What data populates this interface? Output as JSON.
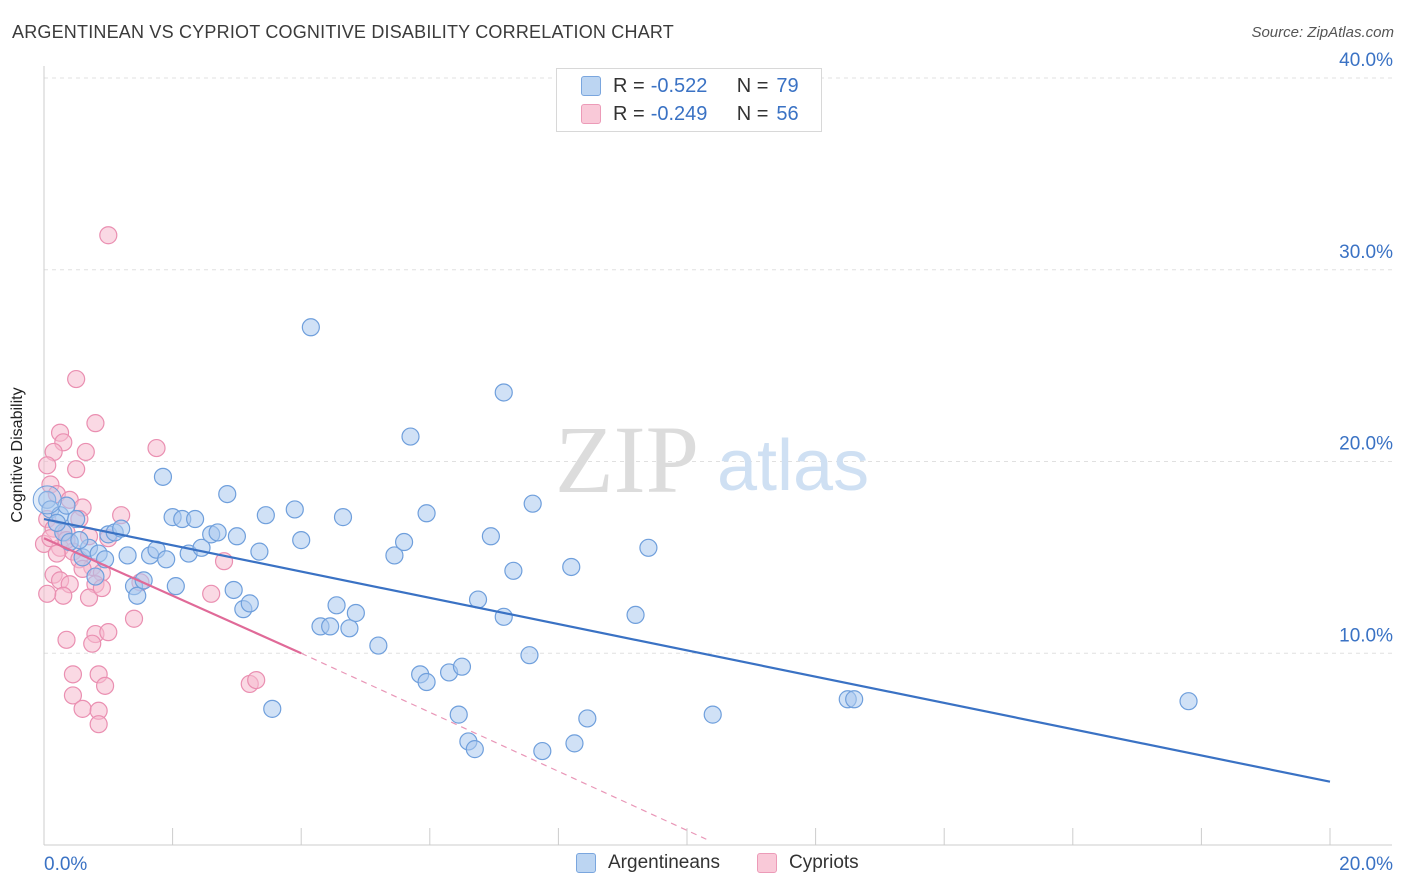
{
  "header": {
    "title": "ARGENTINEAN VS CYPRIOT COGNITIVE DISABILITY CORRELATION CHART",
    "source": "Source: ZipAtlas.com"
  },
  "watermark": {
    "zip": "ZIP",
    "atlas": "atlas"
  },
  "legend": {
    "rows": [
      {
        "r_label": "R =",
        "r_value": "-0.522",
        "n_label": "N =",
        "n_value": "79"
      },
      {
        "r_label": "R =",
        "r_value": "-0.249",
        "n_label": "N =",
        "n_value": "56"
      }
    ]
  },
  "bottom_legend": {
    "items": [
      {
        "label": "Argentineans"
      },
      {
        "label": "Cypriots"
      }
    ]
  },
  "colors": {
    "blue": "#3a72c4",
    "blue_fill": "#a9c8ef",
    "blue_stroke": "#6f9fdc",
    "pink": "#e06a98",
    "pink_fill": "#f6b9cd",
    "pink_stroke": "#ea8fb1",
    "grid": "#e0e0e0",
    "axis_text": "#3a72c4"
  },
  "chart_data": {
    "type": "scatter",
    "title": "ARGENTINEAN VS CYPRIOT COGNITIVE DISABILITY CORRELATION CHART",
    "xlabel": "",
    "ylabel": "Cognitive Disability",
    "xlim": [
      0,
      20
    ],
    "ylim": [
      0,
      40.0
    ],
    "x_ticks": [
      "0.0%",
      "20.0%"
    ],
    "y_ticks": [
      {
        "value": 10,
        "label": "10.0%"
      },
      {
        "value": 20,
        "label": "20.0%"
      },
      {
        "value": 30,
        "label": "30.0%"
      },
      {
        "value": 40,
        "label": "40.0%"
      }
    ],
    "grid": true,
    "legend_position": "top-center",
    "series": [
      {
        "name": "Argentineans",
        "r": -0.522,
        "n": 79,
        "trend": {
          "x0": 0.0,
          "y0": 17.0,
          "x1": 20.0,
          "y1": 3.3,
          "dashed_to": null
        },
        "points": [
          [
            0.05,
            18.0
          ],
          [
            0.1,
            17.5
          ],
          [
            0.25,
            17.2
          ],
          [
            0.3,
            16.3
          ],
          [
            0.4,
            15.8
          ],
          [
            0.5,
            17.0
          ],
          [
            0.6,
            15.0
          ],
          [
            0.7,
            15.5
          ],
          [
            0.85,
            15.2
          ],
          [
            0.95,
            14.9
          ],
          [
            1.0,
            16.2
          ],
          [
            1.1,
            16.3
          ],
          [
            1.2,
            16.5
          ],
          [
            1.3,
            15.1
          ],
          [
            1.4,
            13.5
          ],
          [
            1.45,
            13.0
          ],
          [
            1.55,
            13.8
          ],
          [
            1.65,
            15.1
          ],
          [
            1.75,
            15.4
          ],
          [
            1.85,
            19.2
          ],
          [
            2.0,
            17.1
          ],
          [
            2.05,
            13.5
          ],
          [
            2.15,
            17.0
          ],
          [
            2.25,
            15.2
          ],
          [
            2.35,
            17.0
          ],
          [
            2.45,
            15.5
          ],
          [
            2.6,
            16.2
          ],
          [
            2.7,
            16.3
          ],
          [
            2.85,
            18.3
          ],
          [
            2.95,
            13.3
          ],
          [
            3.1,
            12.3
          ],
          [
            3.2,
            12.6
          ],
          [
            3.35,
            15.3
          ],
          [
            3.45,
            17.2
          ],
          [
            3.55,
            7.1
          ],
          [
            3.9,
            17.5
          ],
          [
            4.0,
            15.9
          ],
          [
            4.15,
            27.0
          ],
          [
            4.3,
            11.4
          ],
          [
            4.45,
            11.4
          ],
          [
            4.55,
            12.5
          ],
          [
            4.65,
            17.1
          ],
          [
            4.75,
            11.3
          ],
          [
            4.85,
            12.1
          ],
          [
            5.2,
            10.4
          ],
          [
            5.45,
            15.1
          ],
          [
            5.6,
            15.8
          ],
          [
            5.7,
            21.3
          ],
          [
            5.85,
            8.9
          ],
          [
            5.95,
            17.3
          ],
          [
            5.95,
            8.5
          ],
          [
            6.3,
            9.0
          ],
          [
            6.5,
            9.3
          ],
          [
            6.45,
            6.8
          ],
          [
            6.6,
            5.4
          ],
          [
            6.7,
            5.0
          ],
          [
            6.75,
            12.8
          ],
          [
            6.95,
            16.1
          ],
          [
            7.15,
            11.9
          ],
          [
            7.3,
            14.3
          ],
          [
            7.15,
            23.6
          ],
          [
            7.55,
            9.9
          ],
          [
            7.75,
            4.9
          ],
          [
            7.6,
            17.8
          ],
          [
            8.2,
            14.5
          ],
          [
            8.25,
            5.3
          ],
          [
            8.45,
            6.6
          ],
          [
            9.2,
            12.0
          ],
          [
            9.4,
            15.5
          ],
          [
            10.4,
            6.8
          ],
          [
            12.5,
            7.6
          ],
          [
            12.6,
            7.6
          ],
          [
            17.8,
            7.5
          ],
          [
            0.2,
            16.8
          ],
          [
            0.35,
            17.7
          ],
          [
            0.55,
            15.9
          ],
          [
            0.8,
            14.0
          ],
          [
            1.9,
            14.9
          ],
          [
            3.0,
            16.1
          ]
        ]
      },
      {
        "name": "Cypriots",
        "r": -0.249,
        "n": 56,
        "trend": {
          "x0": 0.0,
          "y0": 16.0,
          "x1": 4.0,
          "y1": 10.0,
          "dashed_to": {
            "x": 10.3,
            "y": 0.3
          }
        },
        "points": [
          [
            1.0,
            31.8
          ],
          [
            0.5,
            24.3
          ],
          [
            0.8,
            22.0
          ],
          [
            0.25,
            21.5
          ],
          [
            0.3,
            21.0
          ],
          [
            0.15,
            20.5
          ],
          [
            0.65,
            20.5
          ],
          [
            1.75,
            20.7
          ],
          [
            0.05,
            19.8
          ],
          [
            0.5,
            19.6
          ],
          [
            0.1,
            18.8
          ],
          [
            0.2,
            18.3
          ],
          [
            0.4,
            18.0
          ],
          [
            0.6,
            17.6
          ],
          [
            1.2,
            17.2
          ],
          [
            0.05,
            17.0
          ],
          [
            0.15,
            16.5
          ],
          [
            0.35,
            16.3
          ],
          [
            0.7,
            16.1
          ],
          [
            1.0,
            16.0
          ],
          [
            0.0,
            15.7
          ],
          [
            0.25,
            15.5
          ],
          [
            0.45,
            15.3
          ],
          [
            0.55,
            14.9
          ],
          [
            0.75,
            14.5
          ],
          [
            0.9,
            14.2
          ],
          [
            0.15,
            14.1
          ],
          [
            0.25,
            13.8
          ],
          [
            0.4,
            13.6
          ],
          [
            0.8,
            13.6
          ],
          [
            1.5,
            13.7
          ],
          [
            0.3,
            13.0
          ],
          [
            0.7,
            12.9
          ],
          [
            0.05,
            13.1
          ],
          [
            1.4,
            11.8
          ],
          [
            0.35,
            10.7
          ],
          [
            0.8,
            11.0
          ],
          [
            1.0,
            11.1
          ],
          [
            0.75,
            10.5
          ],
          [
            0.45,
            8.9
          ],
          [
            0.85,
            8.9
          ],
          [
            0.95,
            8.3
          ],
          [
            0.45,
            7.8
          ],
          [
            0.6,
            7.1
          ],
          [
            0.85,
            7.0
          ],
          [
            0.85,
            6.3
          ],
          [
            2.6,
            13.1
          ],
          [
            2.8,
            14.8
          ],
          [
            3.2,
            8.4
          ],
          [
            3.3,
            8.6
          ],
          [
            0.1,
            16.0
          ],
          [
            0.6,
            14.4
          ],
          [
            0.2,
            15.2
          ],
          [
            0.35,
            15.9
          ],
          [
            0.55,
            17.0
          ],
          [
            0.9,
            13.4
          ]
        ]
      }
    ]
  }
}
